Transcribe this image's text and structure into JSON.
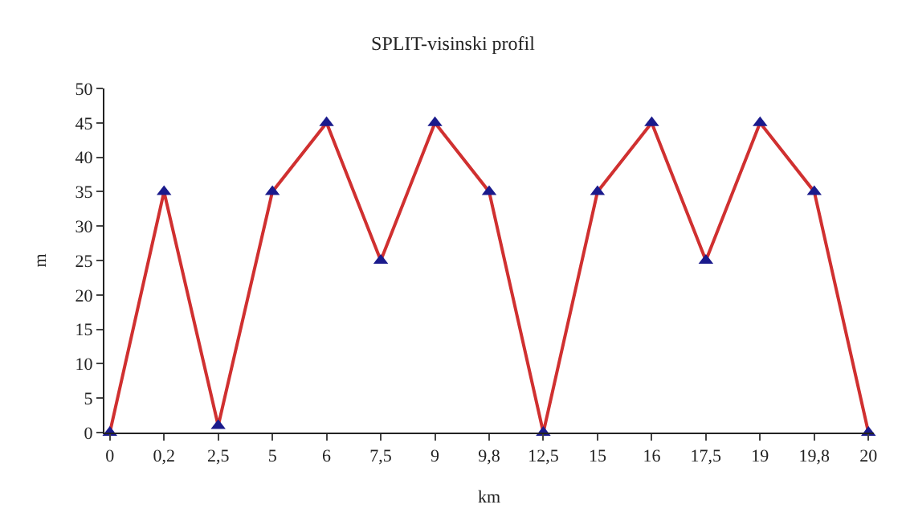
{
  "chart_data": {
    "type": "line",
    "title": "SPLIT-visinski profil",
    "xlabel": "km",
    "ylabel": "m",
    "categories": [
      "0",
      "0,2",
      "2,5",
      "5",
      "6",
      "7,5",
      "9",
      "9,8",
      "12,5",
      "15",
      "16",
      "17,5",
      "19",
      "19,8",
      "20"
    ],
    "series": [
      {
        "color": "#d03030",
        "values": [
          0,
          35,
          1,
          35,
          45,
          25,
          45,
          35,
          0,
          35,
          45,
          25,
          45,
          35,
          0
        ]
      }
    ],
    "ylim": [
      0,
      50
    ],
    "yticks": [
      0,
      5,
      10,
      15,
      20,
      25,
      30,
      35,
      40,
      45,
      50
    ],
    "legend": false,
    "marker": "triangle",
    "line_style": "solid"
  }
}
